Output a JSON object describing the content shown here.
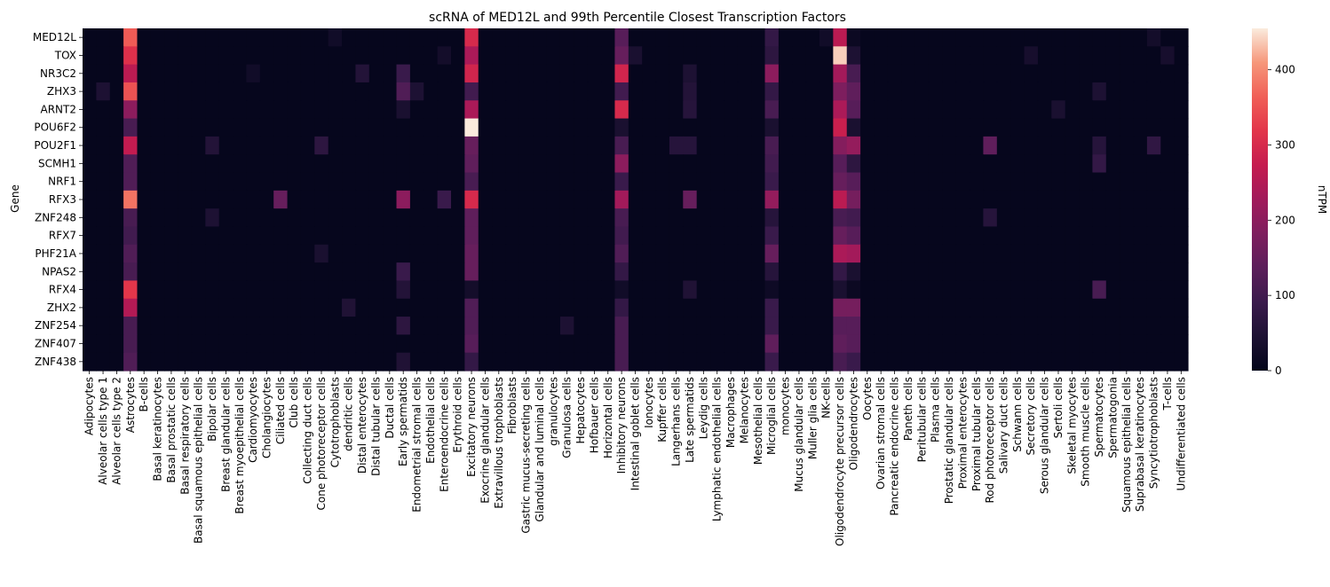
{
  "chart_data": {
    "type": "heatmap",
    "title": "scRNA of MED12L and 99th Percentile Closest Transcription Factors",
    "xlabel": "",
    "ylabel": "Gene",
    "colorbar_label": "nTPM",
    "colorbar_ticks": [
      0,
      100,
      200,
      300,
      400
    ],
    "vmin": 0,
    "vmax": 455,
    "colormap": "rocket",
    "rows": [
      "MED12L",
      "TOX",
      "NR3C2",
      "ZHX3",
      "ARNT2",
      "POU6F2",
      "POU2F1",
      "SCMH1",
      "NRF1",
      "RFX3",
      "ZNF248",
      "RFX7",
      "PHF21A",
      "NPAS2",
      "RFX4",
      "ZHX2",
      "ZNF254",
      "ZNF407",
      "ZNF438"
    ],
    "columns": [
      "Adipocytes",
      "Alveolar cells type 1",
      "Alveolar cells type 2",
      "Astrocytes",
      "B-cells",
      "Basal keratinocytes",
      "Basal prostatic cells",
      "Basal respiratory cells",
      "Basal squamous epithelial cells",
      "Bipolar cells",
      "Breast glandular cells",
      "Breast myoepithelial cells",
      "Cardiomyocytes",
      "Cholangiocytes",
      "Ciliated cells",
      "Club cells",
      "Collecting duct cells",
      "Cone photoreceptor cells",
      "Cytotrophoblasts",
      "dendritic cells",
      "Distal enterocytes",
      "Distal tubular cells",
      "Ductal cells",
      "Early spermatids",
      "Endometrial stromal cells",
      "Endothelial cells",
      "Enteroendocrine cells",
      "Erythroid cells",
      "Excitatory neurons",
      "Exocrine glandular cells",
      "Extravillous trophoblasts",
      "Fibroblasts",
      "Gastric mucus-secreting cells",
      "Glandular and luminal cells",
      "granulocytes",
      "Granulosa cells",
      "Hepatocytes",
      "Hofbauer cells",
      "Horizontal cells",
      "Inhibitory neurons",
      "Intestinal goblet cells",
      "Ionocytes",
      "Kupffer cells",
      "Langerhans cells",
      "Late spermatids",
      "Leydig cells",
      "Lymphatic endothelial cells",
      "Macrophages",
      "Melanocytes",
      "Mesothelial cells",
      "Microglial cells",
      "monocytes",
      "Mucus glandular cells",
      "Muller glia cells",
      "NK-cells",
      "Oligodendrocyte precursor cells",
      "Oligodendrocytes",
      "Oocytes",
      "Ovarian stromal cells",
      "Pancreatic endocrine cells",
      "Paneth cells",
      "Peritubular cells",
      "Plasma cells",
      "Prostatic glandular cells",
      "Proximal enterocytes",
      "Proximal tubular cells",
      "Rod photoreceptor cells",
      "Salivary duct cells",
      "Schwann cells",
      "Secretory cells",
      "Serous glandular cells",
      "Sertoli cells",
      "Skeletal myocytes",
      "Smooth muscle cells",
      "Spermatocytes",
      "Spermatogonia",
      "Squamous epithelial cells",
      "Suprabasal keratinocytes",
      "Syncytiotrophoblasts",
      "T-cells",
      "Undifferentiated cells"
    ],
    "base_values": [
      5,
      5,
      5,
      20,
      5,
      5,
      5,
      5,
      5,
      5,
      5,
      5,
      5,
      5,
      5,
      5,
      5,
      5,
      5,
      5,
      5,
      5,
      5,
      5,
      5,
      5,
      5,
      5,
      20,
      5,
      5,
      5,
      5,
      5,
      5,
      5,
      5,
      5,
      5,
      20,
      5,
      5,
      5,
      5,
      5,
      5,
      5,
      5,
      5,
      5,
      15,
      5,
      5,
      5,
      5,
      20,
      15,
      5,
      5,
      5,
      5,
      5,
      5,
      5,
      5,
      5,
      5,
      5,
      5,
      5,
      5,
      5,
      5,
      5,
      5,
      5,
      5,
      5,
      5,
      5,
      5
    ],
    "highlights": [
      [
        0,
        3,
        360
      ],
      [
        0,
        28,
        300
      ],
      [
        0,
        39,
        130
      ],
      [
        0,
        50,
        80
      ],
      [
        0,
        55,
        260
      ],
      [
        0,
        18,
        25
      ],
      [
        0,
        54,
        25
      ],
      [
        0,
        78,
        30
      ],
      [
        1,
        3,
        310
      ],
      [
        1,
        28,
        240
      ],
      [
        1,
        39,
        150
      ],
      [
        1,
        50,
        70
      ],
      [
        1,
        55,
        440
      ],
      [
        1,
        56,
        45
      ],
      [
        1,
        26,
        30
      ],
      [
        1,
        40,
        40
      ],
      [
        1,
        79,
        35
      ],
      [
        1,
        69,
        35
      ],
      [
        2,
        3,
        260
      ],
      [
        2,
        28,
        290
      ],
      [
        2,
        39,
        290
      ],
      [
        2,
        50,
        200
      ],
      [
        2,
        55,
        230
      ],
      [
        2,
        56,
        110
      ],
      [
        2,
        23,
        90
      ],
      [
        2,
        20,
        55
      ],
      [
        2,
        44,
        45
      ],
      [
        2,
        12,
        25
      ],
      [
        3,
        3,
        350
      ],
      [
        3,
        28,
        100
      ],
      [
        3,
        39,
        100
      ],
      [
        3,
        50,
        80
      ],
      [
        3,
        55,
        180
      ],
      [
        3,
        56,
        140
      ],
      [
        3,
        23,
        120
      ],
      [
        3,
        1,
        45
      ],
      [
        3,
        24,
        45
      ],
      [
        3,
        44,
        55
      ],
      [
        3,
        74,
        45
      ],
      [
        4,
        3,
        200
      ],
      [
        4,
        28,
        240
      ],
      [
        4,
        39,
        300
      ],
      [
        4,
        50,
        110
      ],
      [
        4,
        55,
        240
      ],
      [
        4,
        56,
        130
      ],
      [
        4,
        23,
        40
      ],
      [
        4,
        44,
        60
      ],
      [
        4,
        71,
        40
      ],
      [
        5,
        3,
        110
      ],
      [
        5,
        28,
        455
      ],
      [
        5,
        39,
        40
      ],
      [
        5,
        50,
        40
      ],
      [
        5,
        55,
        280
      ],
      [
        5,
        56,
        40
      ],
      [
        6,
        3,
        270
      ],
      [
        6,
        28,
        150
      ],
      [
        6,
        39,
        110
      ],
      [
        6,
        50,
        110
      ],
      [
        6,
        55,
        190
      ],
      [
        6,
        56,
        210
      ],
      [
        6,
        66,
        140
      ],
      [
        6,
        17,
        70
      ],
      [
        6,
        9,
        55
      ],
      [
        6,
        78,
        75
      ],
      [
        6,
        43,
        60
      ],
      [
        6,
        44,
        60
      ],
      [
        6,
        74,
        60
      ],
      [
        7,
        3,
        120
      ],
      [
        7,
        28,
        140
      ],
      [
        7,
        39,
        200
      ],
      [
        7,
        50,
        100
      ],
      [
        7,
        55,
        130
      ],
      [
        7,
        56,
        70
      ],
      [
        7,
        74,
        80
      ],
      [
        8,
        3,
        120
      ],
      [
        8,
        28,
        110
      ],
      [
        8,
        39,
        90
      ],
      [
        8,
        50,
        90
      ],
      [
        8,
        55,
        150
      ],
      [
        8,
        56,
        130
      ],
      [
        9,
        3,
        380
      ],
      [
        9,
        28,
        300
      ],
      [
        9,
        39,
        230
      ],
      [
        9,
        50,
        210
      ],
      [
        9,
        55,
        260
      ],
      [
        9,
        56,
        170
      ],
      [
        9,
        14,
        150
      ],
      [
        9,
        23,
        200
      ],
      [
        9,
        26,
        90
      ],
      [
        9,
        44,
        150
      ],
      [
        10,
        3,
        110
      ],
      [
        10,
        28,
        140
      ],
      [
        10,
        39,
        110
      ],
      [
        10,
        50,
        60
      ],
      [
        10,
        55,
        110
      ],
      [
        10,
        56,
        100
      ],
      [
        10,
        66,
        60
      ],
      [
        10,
        9,
        45
      ],
      [
        11,
        3,
        100
      ],
      [
        11,
        28,
        140
      ],
      [
        11,
        39,
        100
      ],
      [
        11,
        50,
        90
      ],
      [
        11,
        55,
        150
      ],
      [
        11,
        56,
        130
      ],
      [
        12,
        3,
        120
      ],
      [
        12,
        28,
        150
      ],
      [
        12,
        39,
        120
      ],
      [
        12,
        50,
        150
      ],
      [
        12,
        55,
        240
      ],
      [
        12,
        56,
        230
      ],
      [
        12,
        17,
        40
      ],
      [
        13,
        3,
        110
      ],
      [
        13,
        28,
        150
      ],
      [
        13,
        39,
        80
      ],
      [
        13,
        50,
        60
      ],
      [
        13,
        55,
        80
      ],
      [
        13,
        56,
        40
      ],
      [
        13,
        23,
        90
      ],
      [
        14,
        3,
        320
      ],
      [
        14,
        28,
        30
      ],
      [
        14,
        39,
        25
      ],
      [
        14,
        50,
        20
      ],
      [
        14,
        55,
        40
      ],
      [
        14,
        23,
        55
      ],
      [
        14,
        44,
        50
      ],
      [
        14,
        74,
        110
      ],
      [
        15,
        3,
        250
      ],
      [
        15,
        28,
        120
      ],
      [
        15,
        39,
        80
      ],
      [
        15,
        50,
        90
      ],
      [
        15,
        55,
        170
      ],
      [
        15,
        56,
        170
      ],
      [
        15,
        19,
        50
      ],
      [
        16,
        3,
        110
      ],
      [
        16,
        28,
        120
      ],
      [
        16,
        39,
        110
      ],
      [
        16,
        50,
        90
      ],
      [
        16,
        55,
        130
      ],
      [
        16,
        56,
        130
      ],
      [
        16,
        23,
        70
      ],
      [
        16,
        35,
        45
      ],
      [
        17,
        3,
        110
      ],
      [
        17,
        28,
        130
      ],
      [
        17,
        39,
        110
      ],
      [
        17,
        50,
        140
      ],
      [
        17,
        55,
        140
      ],
      [
        17,
        56,
        130
      ],
      [
        18,
        3,
        120
      ],
      [
        18,
        28,
        80
      ],
      [
        18,
        39,
        110
      ],
      [
        18,
        50,
        90
      ],
      [
        18,
        55,
        110
      ],
      [
        18,
        56,
        90
      ],
      [
        18,
        23,
        50
      ]
    ]
  }
}
